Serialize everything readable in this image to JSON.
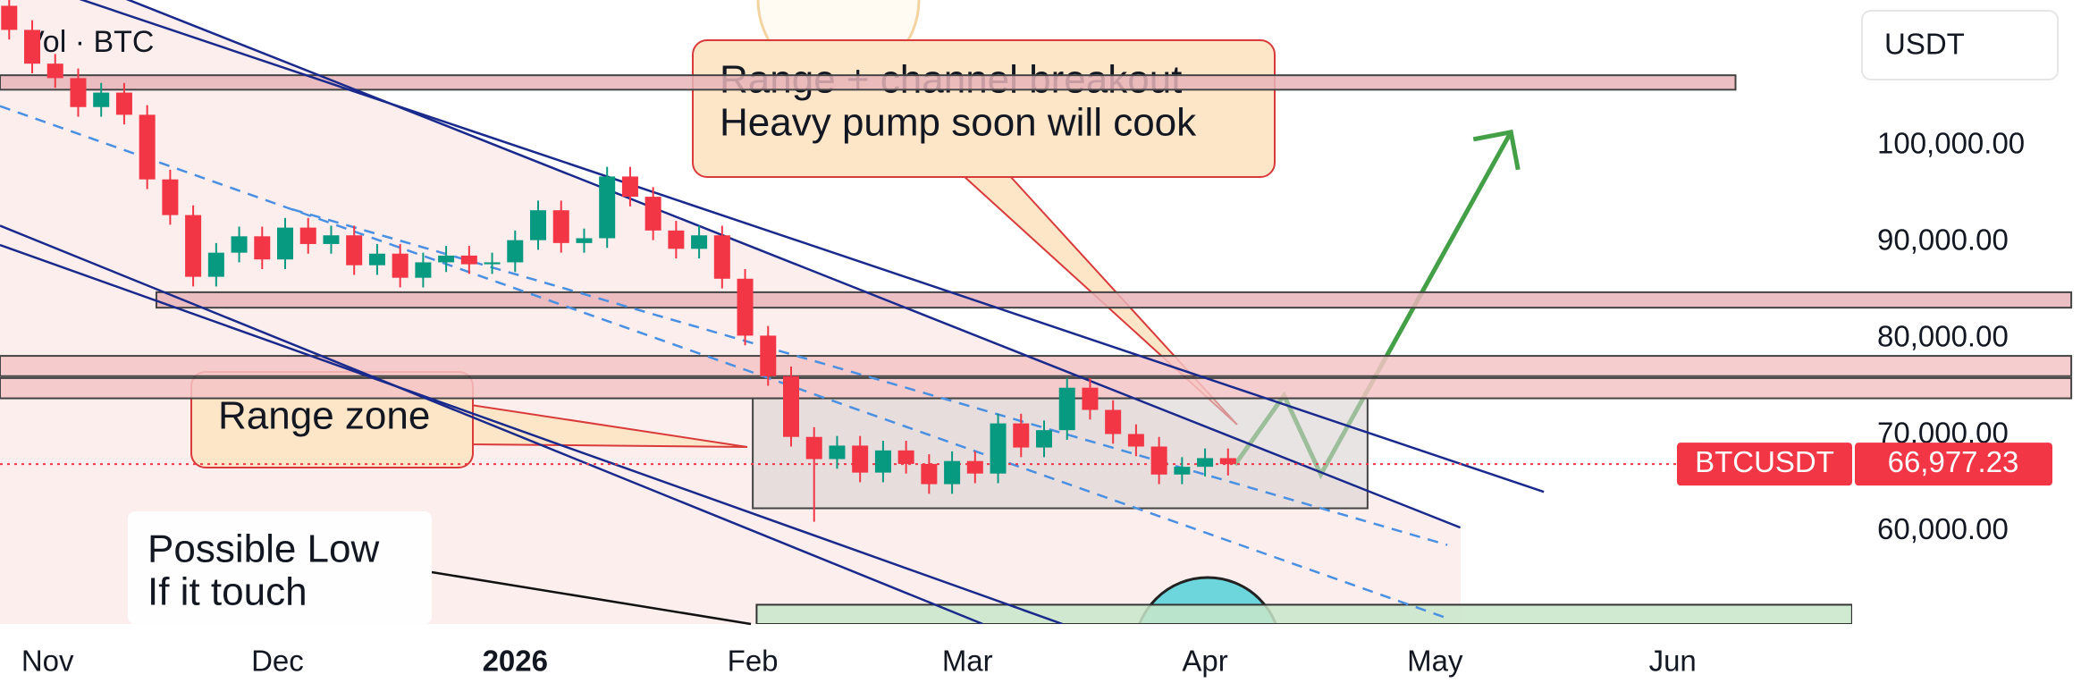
{
  "chart_data": {
    "type": "candlestick",
    "indicator_label": "Vol · BTC",
    "currency": "USDT",
    "symbol": "BTCUSDT",
    "last_price": {
      "value": 66977.23,
      "label": "66,977.23"
    },
    "up_color": "#089981",
    "down_color": "#f23645",
    "x": [
      -5,
      -2,
      1,
      4,
      7,
      10,
      13,
      16,
      19,
      22,
      25,
      28,
      31,
      34,
      37,
      40,
      43,
      46,
      49,
      52,
      55,
      58,
      61,
      64,
      67,
      70,
      73,
      76,
      79,
      82,
      85,
      88,
      91,
      94,
      97,
      100,
      103,
      106,
      109,
      112,
      115,
      118,
      121,
      124,
      127,
      130,
      133,
      136,
      139,
      142,
      145,
      148,
      151,
      154
    ],
    "open": [
      114500,
      112000,
      108500,
      107000,
      104000,
      105500,
      103200,
      96500,
      92800,
      86400,
      88900,
      90600,
      88200,
      91500,
      89800,
      90700,
      87600,
      88800,
      86300,
      87900,
      88600,
      87700,
      87900,
      90200,
      93300,
      89900,
      90400,
      96800,
      94700,
      91200,
      89300,
      90700,
      86200,
      80300,
      76100,
      69800,
      67500,
      68900,
      66100,
      68400,
      67000,
      64900,
      67300,
      66000,
      71200,
      68700,
      70500,
      74900,
      72600,
      70100,
      68800,
      65900,
      66700,
      67600
    ],
    "high": [
      115500,
      113000,
      109500,
      108000,
      106500,
      106500,
      104200,
      97500,
      93800,
      89900,
      91600,
      91600,
      92500,
      92500,
      91700,
      91700,
      89800,
      89800,
      88900,
      89600,
      89600,
      88900,
      91200,
      94300,
      94300,
      91400,
      97800,
      97800,
      95700,
      92200,
      91700,
      91700,
      87200,
      81300,
      77100,
      70800,
      69900,
      69900,
      69400,
      69400,
      68000,
      68300,
      68300,
      72200,
      72200,
      71500,
      75900,
      75900,
      73600,
      71100,
      69800,
      67700,
      68600,
      68600
    ],
    "low": [
      111000,
      107500,
      106000,
      103000,
      103000,
      102200,
      95500,
      91800,
      85400,
      85400,
      87900,
      87200,
      87200,
      88800,
      88800,
      86600,
      86600,
      85300,
      85300,
      86900,
      86700,
      86700,
      86900,
      89200,
      88900,
      88900,
      89400,
      93700,
      90200,
      88300,
      88300,
      85200,
      79300,
      75100,
      68800,
      61000,
      66500,
      65100,
      65100,
      66000,
      63900,
      63900,
      65000,
      65000,
      67700,
      67700,
      69500,
      71600,
      69100,
      67800,
      64900,
      64900,
      65700,
      65800
    ],
    "close": [
      112000,
      108500,
      107000,
      104000,
      105500,
      103200,
      96500,
      92800,
      86400,
      88900,
      90600,
      88200,
      91500,
      89800,
      90700,
      87600,
      88800,
      86300,
      87900,
      88600,
      87700,
      87900,
      90200,
      93300,
      89900,
      90400,
      96800,
      94700,
      91200,
      89300,
      90700,
      86200,
      80300,
      76100,
      69800,
      67500,
      68900,
      66100,
      68400,
      67000,
      64900,
      67300,
      66000,
      71200,
      68700,
      70500,
      74900,
      72600,
      70100,
      68800,
      65900,
      66700,
      67600,
      66977.23
    ],
    "xlim": [
      -6.2,
      234.6
    ],
    "ylim": [
      50400,
      115100
    ],
    "xticks": [
      {
        "value": 0,
        "label": "Nov"
      },
      {
        "value": 30,
        "label": "Dec"
      },
      {
        "value": 61,
        "label": "2026"
      },
      {
        "value": 92,
        "label": "Feb"
      },
      {
        "value": 120,
        "label": "Mar"
      },
      {
        "value": 151,
        "label": "Apr"
      },
      {
        "value": 181,
        "label": "May"
      },
      {
        "value": 212,
        "label": "Jun"
      }
    ],
    "yticks": [
      {
        "value": 100000,
        "label": "100,000.00"
      },
      {
        "value": 90000,
        "label": "90,000.00"
      },
      {
        "value": 80000,
        "label": "80,000.00"
      },
      {
        "value": 70000,
        "label": "70,000.00"
      },
      {
        "value": 60000,
        "label": "60,000.00"
      }
    ],
    "zones": [
      {
        "x": [
          -6.2,
          220.2
        ],
        "y": [
          105800,
          107300
        ],
        "color": "#e8b4b8"
      },
      {
        "x": [
          14.2,
          264
        ],
        "y": [
          83200,
          84800
        ],
        "color": "#e8b4b8"
      },
      {
        "x": [
          -6.2,
          264
        ],
        "y": [
          76100,
          78200
        ],
        "color": "#f4c4c6"
      },
      {
        "x": [
          -6.2,
          264
        ],
        "y": [
          73800,
          75900
        ],
        "color": "#f4c4c6"
      },
      {
        "x": [
          92,
          172.2
        ],
        "y": [
          62400,
          73800
        ],
        "color": "#d9d2d2"
      },
      {
        "x": [
          92.5,
          235.4
        ],
        "y": [
          50400,
          52400
        ],
        "color": "#c8e6c9"
      }
    ],
    "trendlines": [
      {
        "x": [
          4.2,
          195.2
        ],
        "y": [
          115200,
          64100
        ],
        "style": "solid",
        "color": "#1a2a8c"
      },
      {
        "x": [
          10.3,
          184.3
        ],
        "y": [
          115200,
          60400
        ],
        "style": "solid",
        "color": "#1a2a8c"
      },
      {
        "x": [
          -6.2,
          132.4
        ],
        "y": [
          89700,
          50400
        ],
        "style": "solid",
        "color": "#1a2a8c"
      },
      {
        "x": [
          -6.2,
          122
        ],
        "y": [
          91700,
          50400
        ],
        "style": "solid",
        "color": "#1a2a8c"
      },
      {
        "x": [
          -6.2,
          182.6
        ],
        "y": [
          104100,
          51000
        ],
        "style": "dashed",
        "color": "#4a90e2"
      },
      {
        "x": [
          31.9,
          182.6
        ],
        "y": [
          93400,
          58600
        ],
        "style": "dashed",
        "color": "#4a90e2"
      }
    ],
    "projection": {
      "x": [
        154.9,
        161.3,
        166.1,
        190.9
      ],
      "y": [
        66900,
        74100,
        65900,
        101400
      ],
      "color": "#43a047"
    },
    "callouts": [
      {
        "lines": [
          "Range + channel breakout",
          "Heavy pump soon will cook"
        ]
      },
      {
        "lines": [
          "Range zone"
        ]
      },
      {
        "lines": [
          "Possible Low",
          "If it touch"
        ]
      }
    ]
  }
}
